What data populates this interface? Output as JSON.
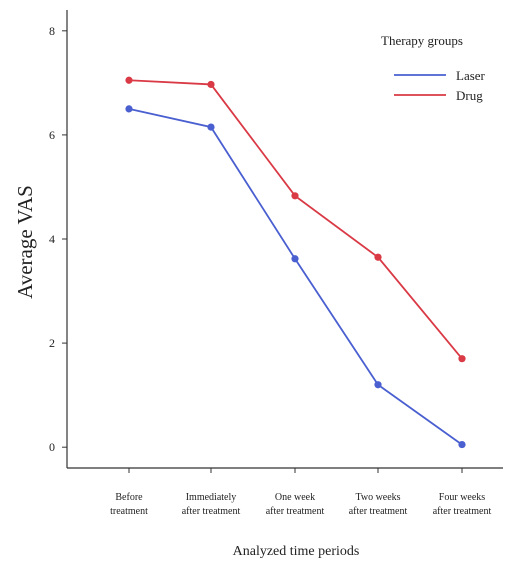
{
  "chart_data": {
    "type": "line",
    "xlabel": "Analyzed time periods",
    "ylabel": "Average VAS",
    "categories": [
      [
        "Before",
        "treatment"
      ],
      [
        "Immediately",
        "after treatment"
      ],
      [
        "One week",
        "after treatment"
      ],
      [
        "Two weeks",
        "after treatment"
      ],
      [
        "Four weeks",
        "after treatment"
      ]
    ],
    "yticks": [
      0,
      2,
      4,
      6,
      8
    ],
    "ylim": [
      -0.4,
      8.4
    ],
    "grid": false,
    "legend": {
      "title": "Therapy groups",
      "placement": "top-right"
    },
    "series": [
      {
        "name": "Laser",
        "color": "#4a5fd0",
        "values": [
          6.5,
          6.15,
          3.62,
          1.2,
          0.05
        ]
      },
      {
        "name": "Drug",
        "color": "#d93a45",
        "values": [
          7.05,
          6.97,
          4.83,
          3.65,
          1.7
        ]
      }
    ]
  }
}
